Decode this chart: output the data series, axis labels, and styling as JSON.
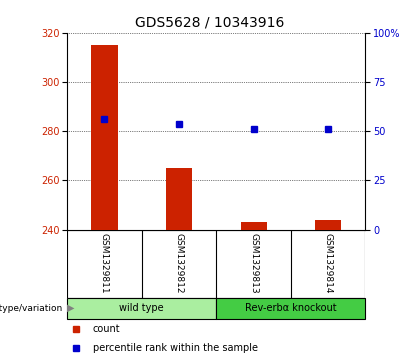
{
  "title": "GDS5628 / 10343916",
  "samples": [
    "GSM1329811",
    "GSM1329812",
    "GSM1329813",
    "GSM1329814"
  ],
  "count_values": [
    315,
    265,
    243,
    244
  ],
  "percentile_values": [
    285,
    283,
    281,
    281
  ],
  "bar_baseline": 240,
  "ylim_left": [
    240,
    320
  ],
  "ylim_right": [
    0,
    100
  ],
  "yticks_left": [
    240,
    260,
    280,
    300,
    320
  ],
  "yticks_right": [
    0,
    25,
    50,
    75,
    100
  ],
  "ytick_labels_right": [
    "0",
    "25",
    "50",
    "75",
    "100%"
  ],
  "bar_color": "#cc2200",
  "dot_color": "#0000cc",
  "groups": [
    {
      "label": "wild type",
      "indices": [
        0,
        1
      ],
      "color": "#aaeea0"
    },
    {
      "label": "Rev-erbα knockout",
      "indices": [
        2,
        3
      ],
      "color": "#44cc44"
    }
  ],
  "group_row_label": "genotype/variation",
  "legend_count_label": "count",
  "legend_pct_label": "percentile rank within the sample",
  "plot_bg": "#ffffff",
  "sample_bg": "#c8c8c8",
  "title_fontsize": 10,
  "tick_fontsize": 7,
  "sample_fontsize": 6.5,
  "group_fontsize": 7,
  "legend_fontsize": 7
}
